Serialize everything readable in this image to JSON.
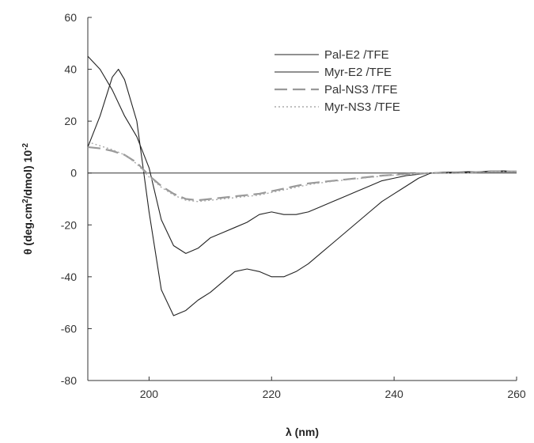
{
  "chart_data": {
    "type": "line",
    "title": "",
    "xlabel": "λ (nm)",
    "ylabel_parts": [
      "θ (deg.cm",
      "2",
      "/dmol) 10",
      "-2"
    ],
    "xlim": [
      190,
      260
    ],
    "ylim": [
      -80,
      60
    ],
    "x_ticks": [
      200,
      220,
      240,
      260
    ],
    "x_tick_labels": [
      "200",
      "220",
      "240",
      "260"
    ],
    "y_ticks": [
      -80,
      -60,
      -40,
      -20,
      0,
      20,
      40,
      60
    ],
    "y_tick_labels": [
      "-80",
      "-60",
      "-40",
      "-20",
      "0",
      "20",
      "40",
      "60"
    ],
    "zero_line": true,
    "grid": false,
    "legend_position": "top-right",
    "series": [
      {
        "name": "Pal-E2 /TFE",
        "color": "#222222",
        "dash": "solid",
        "x": [
          190,
          192,
          194,
          196,
          198,
          200,
          202,
          204,
          206,
          208,
          210,
          212,
          214,
          216,
          218,
          220,
          222,
          224,
          226,
          228,
          230,
          232,
          234,
          236,
          238,
          240,
          242,
          244,
          246,
          248,
          250,
          252,
          254,
          256,
          258,
          260
        ],
        "y": [
          45,
          40,
          32,
          22,
          14,
          2,
          -18,
          -28,
          -31,
          -29,
          -25,
          -23,
          -21,
          -19,
          -16,
          -15,
          -16,
          -16,
          -15,
          -13,
          -11,
          -9,
          -7,
          -5,
          -3,
          -2,
          -1,
          -0.5,
          0,
          0,
          0,
          0.3,
          0.5,
          0.8,
          0.8,
          0.5
        ]
      },
      {
        "name": "Myr-E2 /TFE",
        "color": "#222222",
        "dash": "solid",
        "x": [
          190,
          192,
          194,
          195,
          196,
          198,
          200,
          202,
          204,
          206,
          208,
          210,
          212,
          214,
          216,
          218,
          220,
          222,
          224,
          226,
          228,
          230,
          232,
          234,
          236,
          238,
          240,
          242,
          244,
          246,
          248,
          250,
          252,
          254,
          256,
          258,
          260
        ],
        "y": [
          10,
          22,
          37,
          40,
          36,
          20,
          -15,
          -45,
          -55,
          -53,
          -49,
          -46,
          -42,
          -38,
          -37,
          -38,
          -40,
          -40,
          -38,
          -35,
          -31,
          -27,
          -23,
          -19,
          -15,
          -11,
          -8,
          -5,
          -2,
          0,
          0.3,
          0.3,
          0.5,
          0.5,
          0.5,
          0.5,
          0.5
        ]
      },
      {
        "name": "Pal-NS3 /TFE",
        "color": "#999999",
        "dash": "long-dash",
        "x": [
          190,
          192,
          194,
          196,
          198,
          200,
          202,
          204,
          206,
          208,
          210,
          212,
          214,
          216,
          218,
          220,
          222,
          224,
          226,
          228,
          230,
          232,
          234,
          236,
          238,
          240,
          242,
          244,
          246,
          248,
          250,
          252,
          254,
          256,
          258,
          260
        ],
        "y": [
          10,
          9.5,
          8.5,
          7,
          4,
          -1,
          -5,
          -8,
          -10,
          -10.5,
          -10,
          -9.5,
          -9,
          -8.5,
          -8,
          -7,
          -6,
          -5,
          -4,
          -3.5,
          -3,
          -2.5,
          -2,
          -1.5,
          -1,
          -0.7,
          -0.4,
          -0.2,
          0,
          0,
          0,
          0.2,
          0.4,
          0.6,
          0.6,
          0.6
        ]
      },
      {
        "name": "Myr-NS3 /TFE",
        "color": "#aaaaaa",
        "dash": "dotted",
        "x": [
          190,
          192,
          194,
          196,
          198,
          200,
          202,
          204,
          206,
          208,
          210,
          212,
          214,
          216,
          218,
          220,
          222,
          224,
          226,
          228,
          230,
          232,
          234,
          236,
          238,
          240,
          242,
          244,
          246,
          248,
          250,
          252,
          254,
          256,
          258,
          260
        ],
        "y": [
          12,
          10.5,
          9,
          7,
          3.5,
          -1.5,
          -5.5,
          -8.5,
          -10.5,
          -11,
          -10.5,
          -10,
          -9.5,
          -9,
          -8.5,
          -7.5,
          -6.5,
          -5.5,
          -4.5,
          -3.8,
          -3.2,
          -2.7,
          -2.2,
          -1.7,
          -1.2,
          -0.8,
          -0.5,
          -0.2,
          0,
          0,
          0,
          0,
          0.3,
          0.5,
          0.5,
          0.5
        ]
      }
    ]
  }
}
